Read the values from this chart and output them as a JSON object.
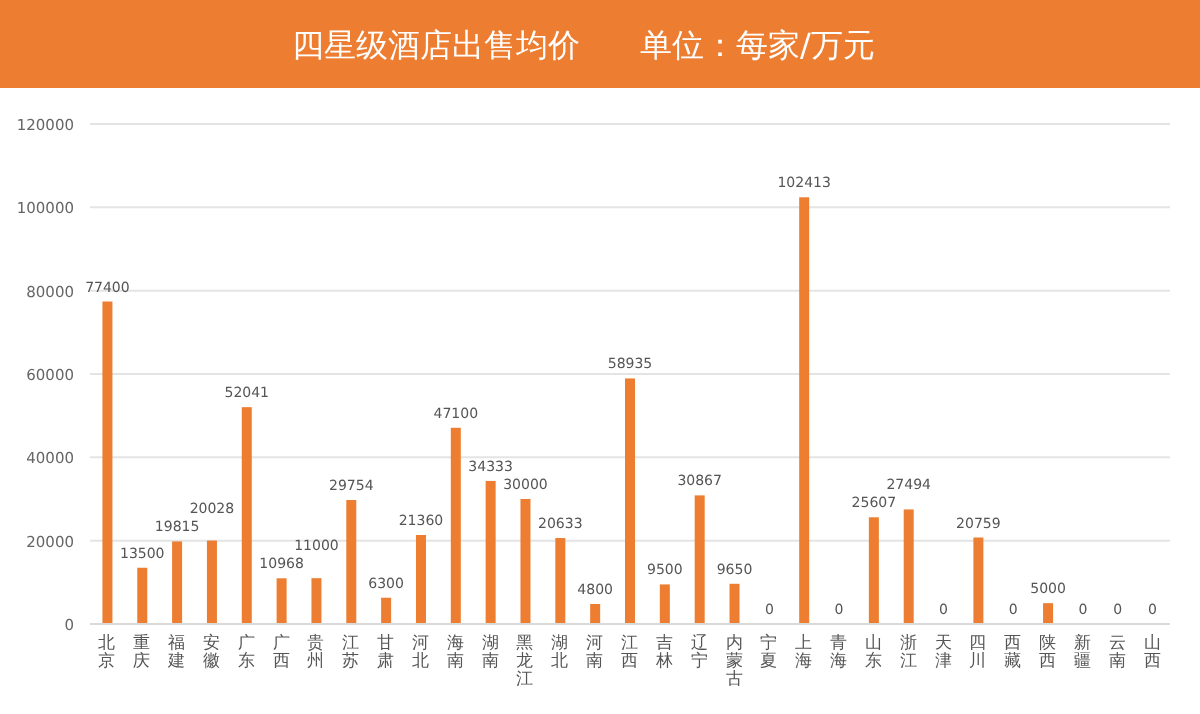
{
  "chart_data": {
    "type": "bar",
    "title": "四星级酒店出售均价",
    "subtitle": "单位：每家/万元",
    "categories": [
      "北京",
      "重庆",
      "福建",
      "安徽",
      "广东",
      "广西",
      "贵州",
      "江苏",
      "甘肃",
      "河北",
      "海南",
      "湖南",
      "黑龙江",
      "湖北",
      "河南",
      "江西",
      "吉林",
      "辽宁",
      "内蒙古",
      "宁夏",
      "上海",
      "青海",
      "山东",
      "浙江",
      "天津",
      "四川",
      "西藏",
      "陕西",
      "新疆",
      "云南",
      "山西"
    ],
    "values": [
      77400,
      13500,
      19815,
      20028,
      52041,
      10968,
      11000,
      29754,
      6300,
      21360,
      47100,
      34333,
      30000,
      20633,
      4800,
      58935,
      9500,
      30867,
      9650,
      0,
      102413,
      0,
      25607,
      27494,
      0,
      20759,
      0,
      5000,
      0,
      0,
      0
    ],
    "color": "#ed7d31",
    "ylim": [
      0,
      120000
    ],
    "yticks": [
      0,
      20000,
      40000,
      60000,
      80000,
      100000,
      120000
    ],
    "grid": "y",
    "data_labels": true
  }
}
